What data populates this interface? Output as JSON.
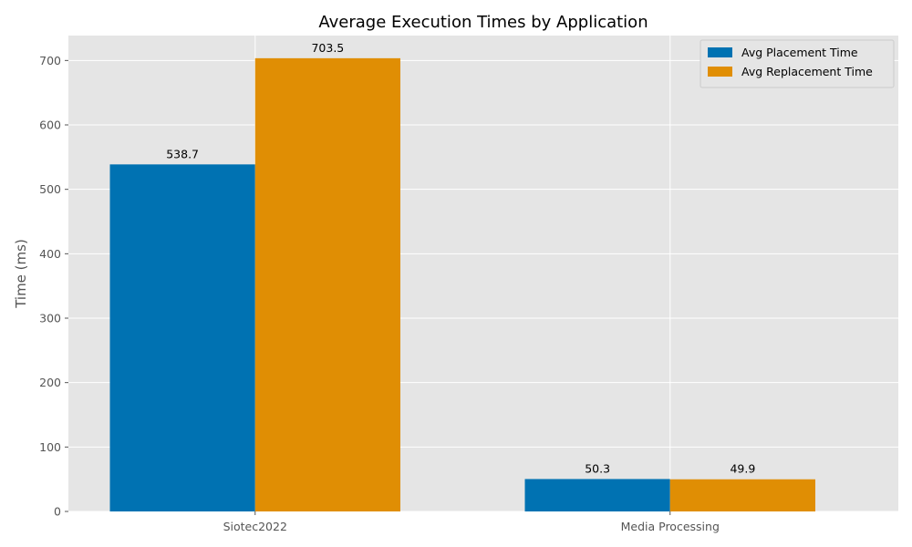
{
  "chart_data": {
    "type": "bar",
    "title": "Average Execution Times by Application",
    "xlabel": "",
    "ylabel": "Time (ms)",
    "categories": [
      "Siotec2022",
      "Media Processing"
    ],
    "series": [
      {
        "name": "Avg Placement Time",
        "values": [
          538.7,
          50.3
        ],
        "color": "#0072B2"
      },
      {
        "name": "Avg Replacement Time",
        "values": [
          703.5,
          49.9
        ],
        "color": "#E08E04"
      }
    ],
    "ylim": [
      0,
      738.7
    ],
    "yticks": [
      0,
      100,
      200,
      300,
      400,
      500,
      600,
      700
    ],
    "data_labels": [
      "538.7",
      "703.5",
      "50.3",
      "49.9"
    ],
    "grid": true,
    "legend_position": "top-right",
    "background_color": "#E5E5E5",
    "grid_color": "#FFFFFF"
  }
}
